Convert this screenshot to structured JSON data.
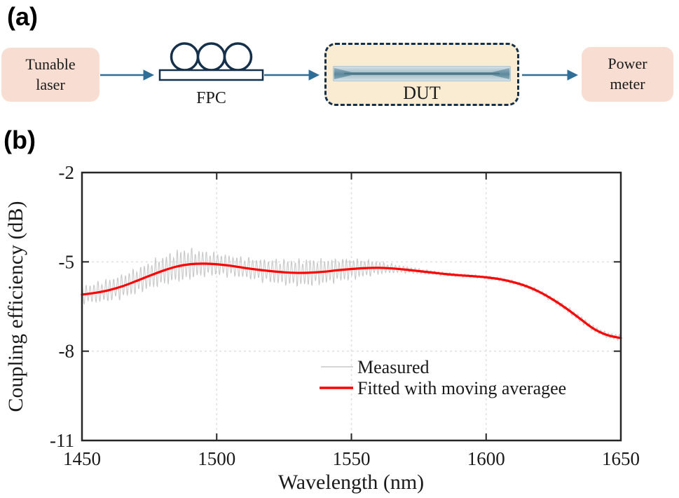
{
  "figure": {
    "panel_a_label": "(a)",
    "panel_b_label": "(b)",
    "background": "#ffffff"
  },
  "diagram": {
    "nodes": [
      {
        "id": "tunable-laser",
        "label": "Tunable laser",
        "line1": "Tunable",
        "line2": "laser"
      },
      {
        "id": "fpc",
        "label": "FPC"
      },
      {
        "id": "dut",
        "label": "DUT"
      },
      {
        "id": "power-meter",
        "label": "Power meter",
        "line1": "Power",
        "line2": "meter"
      }
    ],
    "colors": {
      "node_fill": "#f8ddd2",
      "dut_fill": "#faecd2",
      "outline": "#14304a",
      "arrow": "#2e6f99",
      "text": "#1a1a1a"
    }
  },
  "chart_data": {
    "type": "line",
    "title": "",
    "xlabel": "Wavelength (nm)",
    "ylabel": "Coupling efficiency (dB)",
    "xlim": [
      1450,
      1650
    ],
    "ylim": [
      -11,
      -2
    ],
    "xticks": [
      1450,
      1500,
      1550,
      1600,
      1650
    ],
    "yticks": [
      -2,
      -5,
      -8,
      -11
    ],
    "grid": {
      "style": "dashed",
      "color": "#e0e0e0",
      "x_at": [
        1500,
        1550,
        1600
      ],
      "y_at": [
        -5,
        -8
      ]
    },
    "axis_color": "#262626",
    "legend": {
      "position": "inside-lower-right",
      "border": false
    },
    "series": [
      {
        "name": "Measured",
        "color": "#c8c8c8",
        "line_width": 1.1,
        "style": "interference-fringes",
        "fringe_period_nm": 1.4,
        "envelope_x": [
          1450,
          1458,
          1466,
          1474,
          1482,
          1488,
          1495,
          1502,
          1510,
          1518,
          1526,
          1534,
          1542,
          1550,
          1557,
          1563,
          1570,
          1577,
          1585,
          1595,
          1605,
          1615,
          1625,
          1635,
          1645,
          1650
        ],
        "envelope_amplitude_db": [
          0.33,
          0.42,
          0.47,
          0.52,
          0.58,
          0.63,
          0.5,
          0.42,
          0.4,
          0.44,
          0.5,
          0.52,
          0.47,
          0.41,
          0.3,
          0.2,
          0.13,
          0.09,
          0.07,
          0.06,
          0.07,
          0.08,
          0.1,
          0.13,
          0.1,
          0.12
        ]
      },
      {
        "name": "Fitted with moving averagee",
        "color": "#ff0000",
        "line_width": 3.2,
        "style": "smooth",
        "x": [
          1450,
          1455,
          1460,
          1465,
          1470,
          1475,
          1480,
          1485,
          1490,
          1495,
          1500,
          1505,
          1510,
          1515,
          1520,
          1525,
          1530,
          1535,
          1540,
          1545,
          1550,
          1555,
          1560,
          1565,
          1570,
          1575,
          1580,
          1585,
          1590,
          1595,
          1600,
          1605,
          1610,
          1615,
          1620,
          1625,
          1630,
          1635,
          1640,
          1645,
          1650
        ],
        "y": [
          -6.1,
          -6.04,
          -5.95,
          -5.82,
          -5.65,
          -5.47,
          -5.3,
          -5.16,
          -5.08,
          -5.06,
          -5.08,
          -5.13,
          -5.2,
          -5.26,
          -5.31,
          -5.35,
          -5.37,
          -5.36,
          -5.33,
          -5.28,
          -5.24,
          -5.21,
          -5.2,
          -5.22,
          -5.26,
          -5.31,
          -5.36,
          -5.41,
          -5.45,
          -5.48,
          -5.52,
          -5.58,
          -5.68,
          -5.82,
          -6.02,
          -6.28,
          -6.58,
          -6.92,
          -7.25,
          -7.46,
          -7.56
        ]
      }
    ]
  }
}
